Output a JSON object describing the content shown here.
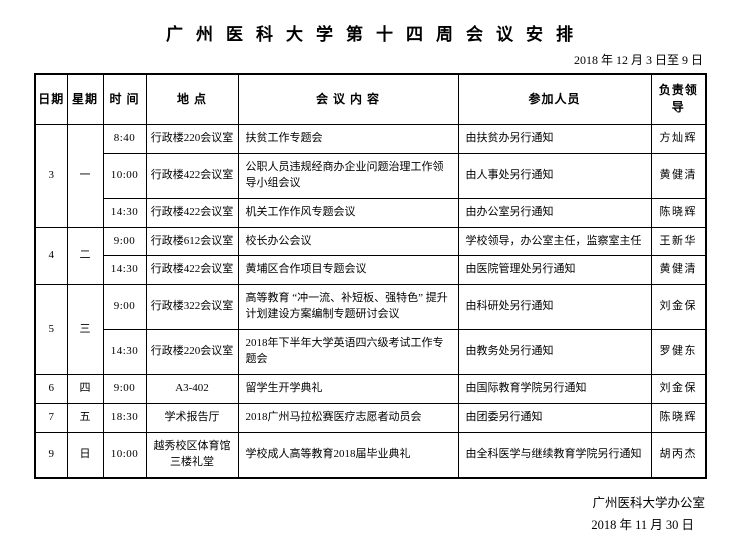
{
  "document": {
    "title": "广州医科大学第十四周会议安排",
    "date_range": "2018 年 12 月 3 日至 9 日",
    "footer_org": "广州医科大学办公室",
    "footer_date": "2018 年 11 月 30 日",
    "colors": {
      "ink": "#000000",
      "background": "#ffffff"
    }
  },
  "table": {
    "headers": [
      "日期",
      "星期",
      "时 间",
      "地 点",
      "会 议 内 容",
      "参加人员",
      "负责领导"
    ],
    "groups": [
      {
        "date": "3",
        "weekday": "一",
        "rows": [
          {
            "time": "8:40",
            "location": "行政楼220会议室",
            "content": "扶贫工作专题会",
            "participants": "由扶贫办另行通知",
            "leader": "方灿辉"
          },
          {
            "time": "10:00",
            "location": "行政楼422会议室",
            "content": "公职人员违规经商办企业问题治理工作领导小组会议",
            "participants": "由人事处另行通知",
            "leader": "黄健清"
          },
          {
            "time": "14:30",
            "location": "行政楼422会议室",
            "content": "机关工作作风专题会议",
            "participants": "由办公室另行通知",
            "leader": "陈晓辉"
          }
        ]
      },
      {
        "date": "4",
        "weekday": "二",
        "rows": [
          {
            "time": "9:00",
            "location": "行政楼612会议室",
            "content": "校长办公会议",
            "participants": "学校领导，办公室主任，监察室主任",
            "leader": "王新华"
          },
          {
            "time": "14:30",
            "location": "行政楼422会议室",
            "content": "黄埔区合作项目专题会议",
            "participants": "由医院管理处另行通知",
            "leader": "黄健清"
          }
        ]
      },
      {
        "date": "5",
        "weekday": "三",
        "rows": [
          {
            "time": "9:00",
            "location": "行政楼322会议室",
            "content": "高等教育 “冲一流、补短板、强特色” 提升计划建设方案编制专题研讨会议",
            "participants": "由科研处另行通知",
            "leader": "刘金保"
          },
          {
            "time": "14:30",
            "location": "行政楼220会议室",
            "content": "2018年下半年大学英语四六级考试工作专题会",
            "participants": "由教务处另行通知",
            "leader": "罗健东"
          }
        ]
      },
      {
        "date": "6",
        "weekday": "四",
        "rows": [
          {
            "time": "9:00",
            "location": "A3-402",
            "content": "留学生开学典礼",
            "participants": "由国际教育学院另行通知",
            "leader": "刘金保"
          }
        ]
      },
      {
        "date": "7",
        "weekday": "五",
        "rows": [
          {
            "time": "18:30",
            "location": "学术报告厅",
            "content": "2018广州马拉松赛医疗志愿者动员会",
            "participants": "由团委另行通知",
            "leader": "陈晓辉"
          }
        ]
      },
      {
        "date": "9",
        "weekday": "日",
        "rows": [
          {
            "time": "10:00",
            "location": "越秀校区体育馆三楼礼堂",
            "content": "学校成人高等教育2018届毕业典礼",
            "participants": "由全科医学与继续教育学院另行通知",
            "leader": "胡丙杰"
          }
        ]
      }
    ]
  }
}
